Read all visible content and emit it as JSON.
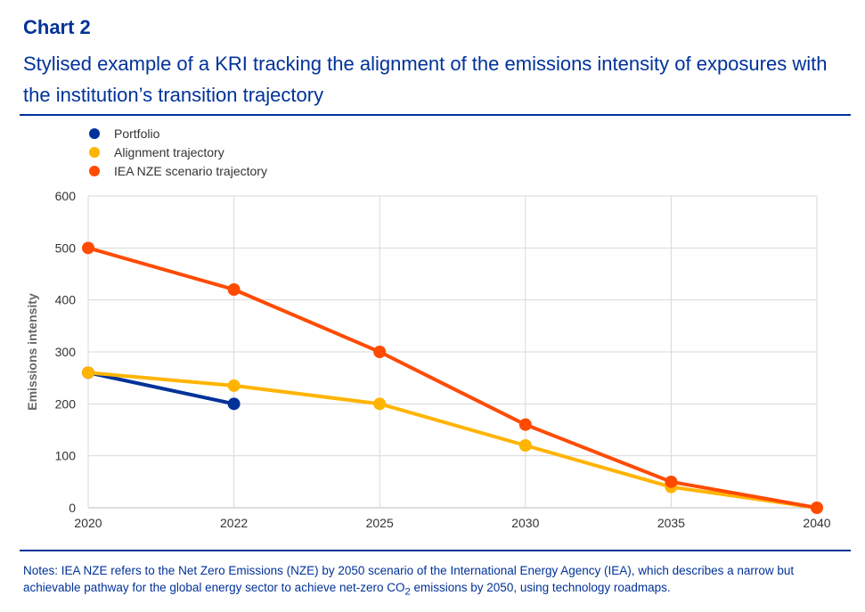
{
  "header": {
    "label": "Chart 2",
    "title": "Stylised example of a KRI tracking the alignment of the emissions intensity of exposures with the institution’s transition trajectory"
  },
  "notes": {
    "prefix": "Notes: IEA NZE refers to the Net Zero Emissions (NZE) by 2050 scenario of the International Energy Agency (IEA), which describes a narrow but achievable pathway for the global energy sector to achieve net-zero CO",
    "subscript": "2",
    "suffix": " emissions by 2050, using technology roadmaps."
  },
  "chart_data": {
    "type": "line",
    "categories": [
      "2020",
      "2022",
      "2025",
      "2030",
      "2035",
      "2040"
    ],
    "ylabel": "Emissions intensity",
    "ylim": [
      0,
      600
    ],
    "yticks": [
      "0",
      "100",
      "200",
      "300",
      "400",
      "500",
      "600"
    ],
    "grid": true,
    "legend_position": "top-left",
    "series": [
      {
        "name": "Portfolio",
        "color": "#003299",
        "values": [
          260,
          200,
          null,
          null,
          null,
          null
        ]
      },
      {
        "name": "Alignment trajectory",
        "color": "#FFB400",
        "values": [
          260,
          235,
          200,
          120,
          40,
          0
        ]
      },
      {
        "name": "IEA NZE scenario trajectory",
        "color": "#FF4B00",
        "values": [
          500,
          420,
          300,
          160,
          50,
          0
        ]
      }
    ]
  }
}
